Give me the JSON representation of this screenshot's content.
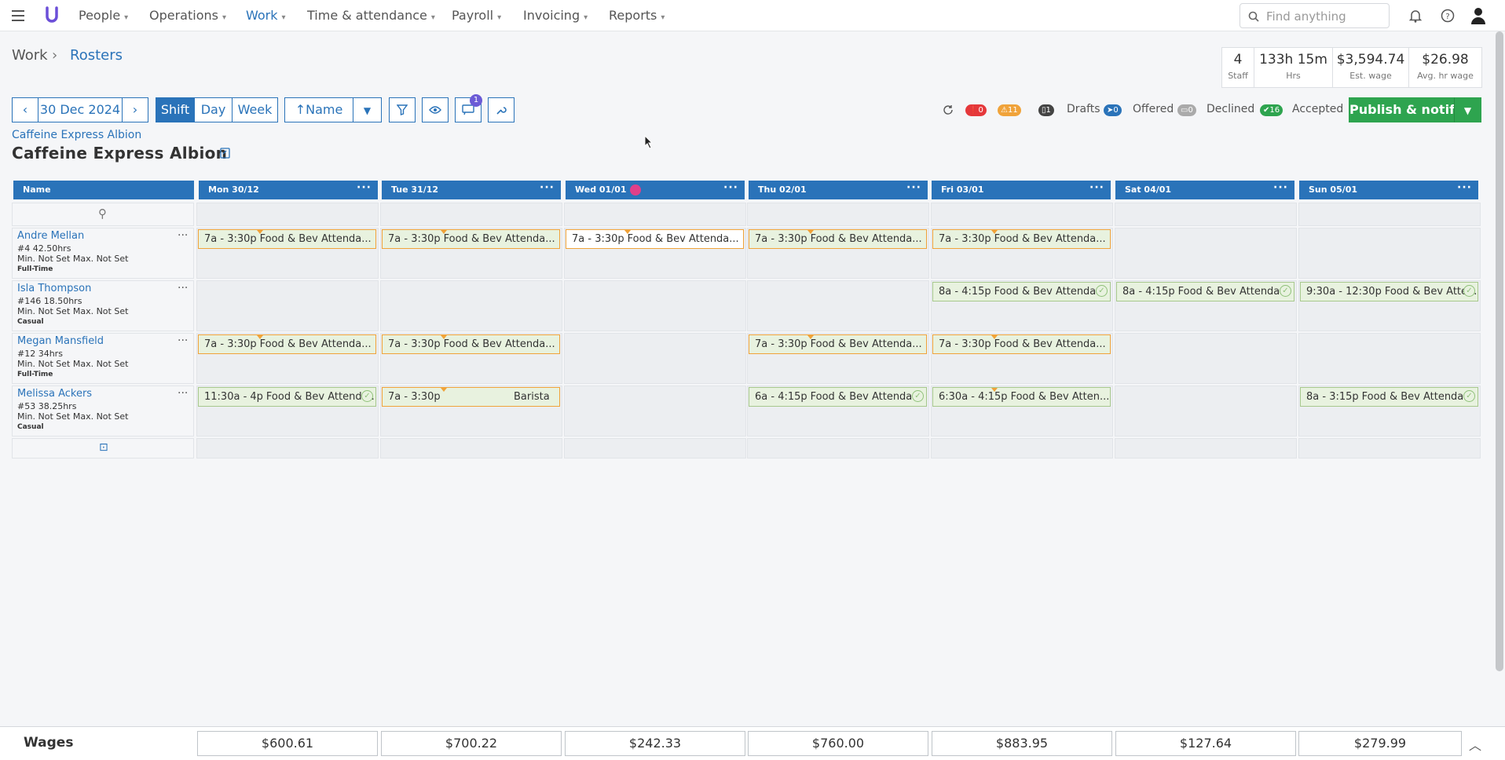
{
  "nav": {
    "items": [
      {
        "label": "People"
      },
      {
        "label": "Operations"
      },
      {
        "label": "Work"
      },
      {
        "label": "Time & attendance"
      },
      {
        "label": "Payroll"
      },
      {
        "label": "Invoicing"
      },
      {
        "label": "Reports"
      }
    ],
    "search_placeholder": "Find anything"
  },
  "breadcrumb": {
    "parent": "Work",
    "separator": "›",
    "current": "Rosters"
  },
  "stats": [
    {
      "value": "4",
      "label": "Staff"
    },
    {
      "value": "133h 15m",
      "label": "Hrs"
    },
    {
      "value": "$3,594.74",
      "label": "Est. wage"
    },
    {
      "value": "$26.98",
      "label": "Avg. hr wage"
    }
  ],
  "toolbar": {
    "date": "30 Dec 2024",
    "views": [
      "Shift",
      "Day",
      "Week"
    ],
    "sort_label": "Name",
    "notif_count": "1"
  },
  "status": {
    "errors": "0",
    "warnings": "11",
    "drafts_count": "1",
    "drafts_label": "Drafts",
    "offered_count": "0",
    "offered_label": "Offered",
    "declined_count": "0",
    "declined_label": "Declined",
    "accepted_count": "16",
    "accepted_label": "Accepted",
    "publish_label": "Publish & notify"
  },
  "location": {
    "link": "Caffeine Express Albion",
    "title": "Caffeine Express Albion"
  },
  "grid": {
    "name_header": "Name",
    "days": [
      "Mon 30/12",
      "Tue 31/12",
      "Wed 01/01",
      "Thu 02/01",
      "Fri 03/01",
      "Sat 04/01",
      "Sun 05/01"
    ],
    "employees": [
      {
        "name": "Andre Mellan",
        "id_hours": "#4  42.50hrs",
        "limits": "Min. Not Set    Max. Not Set",
        "type": "Full-Time",
        "shifts": [
          {
            "time": "7a  -  3:30p",
            "role": "Food & Bev Attenda..."
          },
          {
            "time": "7a  -  3:30p",
            "role": "Food & Bev Attenda..."
          },
          {
            "time": "7a  -  3:30p",
            "role": "Food & Bev Attenda..."
          },
          {
            "time": "7a  -  3:30p",
            "role": "Food & Bev Attenda..."
          },
          {
            "time": "7a  -  3:30p",
            "role": "Food & Bev Attenda..."
          }
        ]
      },
      {
        "name": "Isla Thompson",
        "id_hours": "#146  18.50hrs",
        "limits": "Min. Not Set    Max. Not Set",
        "type": "Casual",
        "shifts": [
          {
            "time": "8a  -  4:15p",
            "role": "Food & Bev Attenda..."
          },
          {
            "time": "8a  -  4:15p",
            "role": "Food & Bev Attenda..."
          },
          {
            "time": "9:30a  -  12:30p",
            "role": "Food & Bev Atte..."
          }
        ]
      },
      {
        "name": "Megan Mansfield",
        "id_hours": "#12  34hrs",
        "limits": "Min. Not Set    Max. Not Set",
        "type": "Full-Time",
        "shifts": [
          {
            "time": "7a  -  3:30p",
            "role": "Food & Bev Attenda..."
          },
          {
            "time": "7a  -  3:30p",
            "role": "Food & Bev Attenda..."
          },
          {
            "time": "7a  -  3:30p",
            "role": "Food & Bev Attenda..."
          },
          {
            "time": "7a  -  3:30p",
            "role": "Food & Bev Attenda..."
          }
        ]
      },
      {
        "name": "Melissa Ackers",
        "id_hours": "#53  38.25hrs",
        "limits": "Min. Not Set    Max. Not Set",
        "type": "Casual",
        "shifts": [
          {
            "time": "11:30a  -  4p",
            "role": "Food & Bev Attenda..."
          },
          {
            "time": "7a  -  3:30p",
            "role": "Barista"
          },
          {
            "time": "6a  -  4:15p",
            "role": "Food & Bev Attenda..."
          },
          {
            "time": "6:30a  -  4:15p",
            "role": "Food & Bev Atten..."
          },
          {
            "time": "8a  -  3:15p",
            "role": "Food & Bev Attenda..."
          }
        ]
      }
    ]
  },
  "wages": {
    "label": "Wages",
    "values": [
      "$600.61",
      "$700.22",
      "$242.33",
      "$760.00",
      "$883.95",
      "$127.64",
      "$279.99"
    ]
  },
  "colors": {
    "accent": "#2a73b9",
    "publish": "#2ea44f",
    "warning": "#f0a33a",
    "error": "#e5383b"
  }
}
